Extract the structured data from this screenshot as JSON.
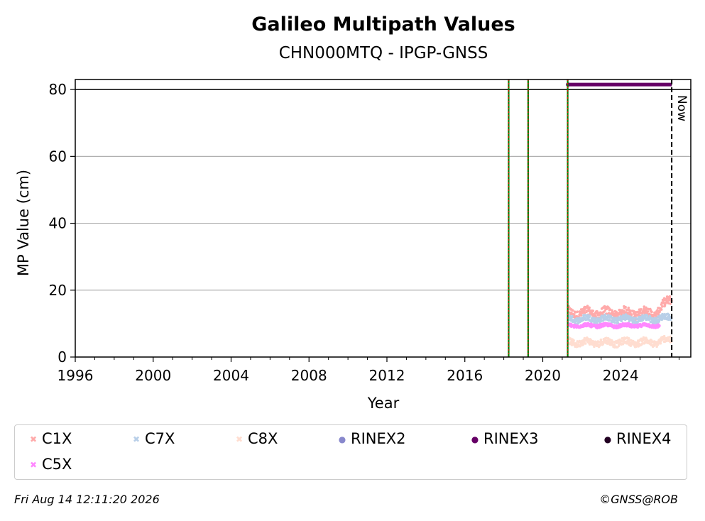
{
  "chart_data": {
    "type": "scatter",
    "title": "Galileo Multipath Values",
    "subtitle": "CHN000MTQ - IPGP-GNSS",
    "xlabel": "Year",
    "ylabel": "MP Value (cm)",
    "xlim": [
      1996,
      2027.6
    ],
    "ylim": [
      0,
      83
    ],
    "x_ticks": [
      1996,
      2000,
      2004,
      2008,
      2012,
      2016,
      2020,
      2024
    ],
    "y_ticks": [
      0,
      20,
      40,
      60,
      80
    ],
    "grid": "y",
    "reference_line_y": 80,
    "now_marker": {
      "x": 2026.62,
      "label": "Now"
    },
    "event_lines": [
      2018.25,
      2019.25,
      2021.28
    ],
    "series": [
      {
        "name": "C1X",
        "color": "#ffaaaa",
        "marker": "x",
        "x_range": [
          2021.3,
          2026.62
        ],
        "mean": 13.2,
        "spread": 1.6,
        "end_rise": 4.5
      },
      {
        "name": "C7X",
        "color": "#b8cfe8",
        "marker": "x",
        "x_range": [
          2021.3,
          2026.62
        ],
        "mean": 11.4,
        "spread": 1.1,
        "end_rise": 0.6
      },
      {
        "name": "C8X",
        "color": "#ffddd0",
        "marker": "x",
        "x_range": [
          2021.3,
          2026.62
        ],
        "mean": 4.4,
        "spread": 1.2,
        "end_rise": 1.0
      },
      {
        "name": "RINEX2",
        "color": "#8888cc",
        "marker": "o",
        "values": []
      },
      {
        "name": "RINEX3",
        "color": "#660066",
        "marker": "o",
        "x_range": [
          2021.3,
          2026.62
        ],
        "value": 81.5
      },
      {
        "name": "RINEX4",
        "color": "#220022",
        "marker": "o",
        "values": []
      },
      {
        "name": "C5X",
        "color": "#ff88ff",
        "marker": "x",
        "x_range": [
          2021.3,
          2026.0
        ],
        "mean": 9.4,
        "spread": 0.6,
        "end_rise": 0
      }
    ]
  },
  "legend": {
    "items": [
      {
        "label": "C1X",
        "glyph": "✖",
        "color": "#ffaaaa"
      },
      {
        "label": "C7X",
        "glyph": "✖",
        "color": "#b8cfe8"
      },
      {
        "label": "C8X",
        "glyph": "✖",
        "color": "#ffddd0"
      },
      {
        "label": "RINEX2",
        "glyph": "●",
        "color": "#8888cc"
      },
      {
        "label": "RINEX3",
        "glyph": "●",
        "color": "#660066"
      },
      {
        "label": "RINEX4",
        "glyph": "●",
        "color": "#220022"
      },
      {
        "label": "C5X",
        "glyph": "✖",
        "color": "#ff88ff"
      }
    ]
  },
  "footer": {
    "timestamp": "Fri Aug 14 12:11:20 2026",
    "credit": "©GNSS@ROB"
  }
}
